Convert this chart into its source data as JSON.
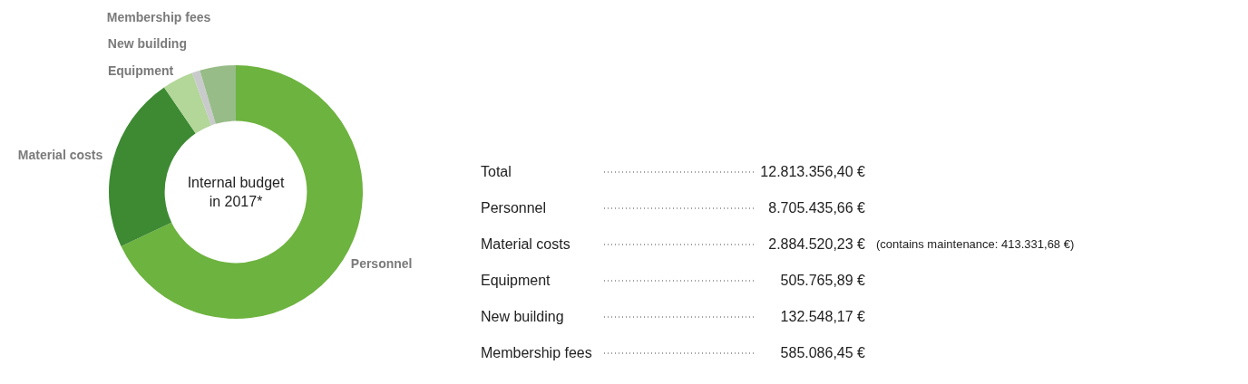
{
  "chart_data": {
    "type": "donut",
    "title": "Internal budget in 2017*",
    "categories": [
      "Personnel",
      "Material costs",
      "Equipment",
      "New building",
      "Membership fees"
    ],
    "values": [
      67.94,
      22.51,
      3.95,
      1.03,
      4.57
    ],
    "colors": [
      "#6db33f",
      "#3d8a33",
      "#b3d699",
      "#c9cacc",
      "#97bc87"
    ],
    "annotations": [
      "Total",
      "12.813.356,40 €",
      "8.705.435,66 €",
      "2.884.520,23 €",
      "505.765,89 €",
      "132.548,17 €",
      "585.086,45 €",
      "(contains maintenance: 413.331,68 €)"
    ],
    "legend": false
  }
}
